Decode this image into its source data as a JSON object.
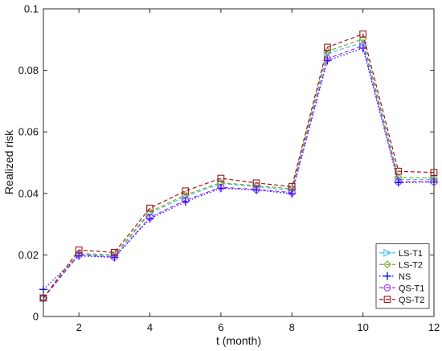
{
  "chart_data": {
    "type": "line",
    "title": "",
    "xlabel": "t (month)",
    "ylabel": "Realized risk",
    "x": [
      1,
      2,
      3,
      4,
      5,
      6,
      7,
      8,
      9,
      10,
      11,
      12
    ],
    "xlim": [
      1,
      12
    ],
    "ylim": [
      0,
      0.1
    ],
    "xticks": [
      2,
      4,
      6,
      8,
      10,
      12
    ],
    "yticks": [
      0,
      0.02,
      0.04,
      0.06,
      0.08,
      0.1
    ],
    "xtick_labels": [
      "2",
      "4",
      "6",
      "8",
      "10",
      "12"
    ],
    "ytick_labels": [
      "0",
      "0.02",
      "0.04",
      "0.06",
      "0.08",
      "0.1"
    ],
    "grid": false,
    "legend_position": "bottom-right",
    "series": [
      {
        "name": "LS-T1",
        "color": "#4dbeee",
        "marker": "triangle-right",
        "line_style": "dashed",
        "values": [
          0.006,
          0.0202,
          0.0198,
          0.0335,
          0.039,
          0.0432,
          0.0422,
          0.041,
          0.0855,
          0.089,
          0.0445,
          0.0445
        ]
      },
      {
        "name": "LS-T2",
        "color": "#77ac30",
        "marker": "diamond",
        "line_style": "dashed",
        "values": [
          0.006,
          0.0205,
          0.02,
          0.034,
          0.0395,
          0.0435,
          0.0425,
          0.0415,
          0.0862,
          0.0902,
          0.0452,
          0.045
        ]
      },
      {
        "name": "NS",
        "color": "#0000ff",
        "marker": "plus",
        "line_style": "dotted",
        "values": [
          0.0088,
          0.0197,
          0.0192,
          0.0318,
          0.0373,
          0.0417,
          0.0411,
          0.0399,
          0.0832,
          0.0872,
          0.0435,
          0.0437
        ]
      },
      {
        "name": "QS-T1",
        "color": "#9b30ff",
        "marker": "circle",
        "line_style": "dashed",
        "values": [
          0.006,
          0.02,
          0.0193,
          0.0322,
          0.0378,
          0.042,
          0.0413,
          0.0403,
          0.0838,
          0.088,
          0.0438,
          0.0438
        ]
      },
      {
        "name": "QS-T2",
        "color": "#a0151a",
        "marker": "square",
        "line_style": "dashed",
        "values": [
          0.006,
          0.0216,
          0.0208,
          0.0352,
          0.0408,
          0.0449,
          0.0434,
          0.0422,
          0.0875,
          0.0918,
          0.0472,
          0.0468
        ]
      }
    ]
  }
}
